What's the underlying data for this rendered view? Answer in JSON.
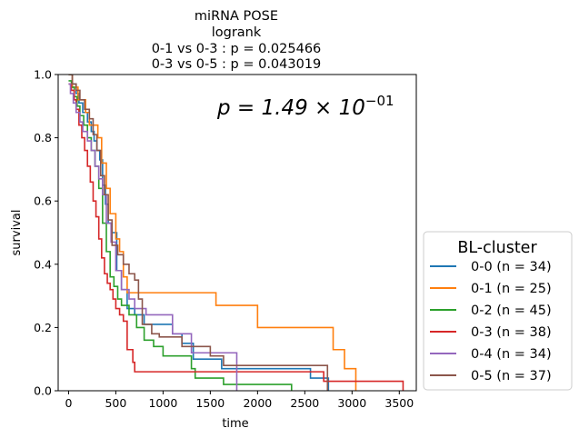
{
  "chart_data": {
    "type": "line",
    "step": true,
    "title_lines": [
      "miRNA POSE",
      "logrank",
      "0-1 vs 0-3 :  p = 0.025466",
      "0-3 vs 0-5 :  p = 0.043019"
    ],
    "annotation": {
      "base": "p = 1.49 × 10",
      "exponent": "−01"
    },
    "xlabel": "time",
    "ylabel": "survival",
    "xlim": [
      -110,
      3680
    ],
    "ylim": [
      0,
      1
    ],
    "xticks": [
      0,
      500,
      1000,
      1500,
      2000,
      2500,
      3000,
      3500
    ],
    "yticks": [
      0.0,
      0.2,
      0.4,
      0.6,
      0.8,
      1.0
    ],
    "grid": false,
    "legend": {
      "title": "BL-cluster",
      "placement": "outside-right-bottom"
    },
    "series": [
      {
        "name": "0-0 (n = 34)",
        "color": "#1f77b4",
        "x": [
          0,
          40,
          80,
          110,
          150,
          200,
          240,
          270,
          300,
          330,
          360,
          390,
          420,
          460,
          510,
          560,
          620,
          700,
          800,
          900,
          1000,
          1100,
          1200,
          1300,
          1320,
          1620,
          2300,
          2560,
          2750
        ],
        "y": [
          1.0,
          0.97,
          0.94,
          0.91,
          0.88,
          0.85,
          0.82,
          0.79,
          0.76,
          0.73,
          0.65,
          0.59,
          0.53,
          0.5,
          0.38,
          0.32,
          0.26,
          0.24,
          0.21,
          0.21,
          0.21,
          0.18,
          0.15,
          0.15,
          0.1,
          0.07,
          0.07,
          0.04,
          0.0
        ]
      },
      {
        "name": "0-1 (n = 25)",
        "color": "#ff7f0e",
        "x": [
          0,
          40,
          100,
          180,
          220,
          310,
          350,
          400,
          440,
          500,
          540,
          580,
          620,
          1560,
          2000,
          2800,
          2920,
          3040
        ],
        "y": [
          1.0,
          0.96,
          0.92,
          0.88,
          0.84,
          0.8,
          0.72,
          0.64,
          0.56,
          0.48,
          0.44,
          0.36,
          0.31,
          0.27,
          0.2,
          0.13,
          0.07,
          0.0
        ]
      },
      {
        "name": "0-2 (n = 45)",
        "color": "#2ca02c",
        "x": [
          0,
          30,
          60,
          90,
          120,
          160,
          200,
          240,
          280,
          320,
          360,
          400,
          440,
          480,
          520,
          560,
          640,
          720,
          800,
          900,
          1000,
          1300,
          1340,
          1400,
          1640,
          2360
        ],
        "y": [
          0.98,
          0.96,
          0.93,
          0.9,
          0.87,
          0.84,
          0.8,
          0.76,
          0.71,
          0.64,
          0.53,
          0.44,
          0.36,
          0.33,
          0.29,
          0.27,
          0.24,
          0.2,
          0.16,
          0.14,
          0.11,
          0.07,
          0.04,
          0.04,
          0.02,
          0.0
        ]
      },
      {
        "name": "0-3 (n = 38)",
        "color": "#d62728",
        "x": [
          0,
          30,
          60,
          80,
          110,
          140,
          170,
          200,
          230,
          260,
          290,
          320,
          350,
          380,
          410,
          440,
          470,
          500,
          540,
          580,
          620,
          680,
          700,
          1000,
          1100,
          1600,
          2700,
          3540
        ],
        "y": [
          0.97,
          0.95,
          0.92,
          0.89,
          0.84,
          0.8,
          0.76,
          0.71,
          0.66,
          0.6,
          0.55,
          0.48,
          0.42,
          0.37,
          0.34,
          0.32,
          0.29,
          0.26,
          0.24,
          0.22,
          0.13,
          0.09,
          0.06,
          0.06,
          0.06,
          0.06,
          0.03,
          0.0
        ]
      },
      {
        "name": "0-4 (n = 34)",
        "color": "#9467bd",
        "x": [
          0,
          20,
          50,
          80,
          120,
          150,
          200,
          240,
          280,
          320,
          360,
          400,
          450,
          500,
          560,
          640,
          700,
          820,
          880,
          1100,
          1300,
          1460,
          1780
        ],
        "y": [
          0.97,
          0.94,
          0.91,
          0.88,
          0.85,
          0.82,
          0.79,
          0.76,
          0.71,
          0.67,
          0.62,
          0.53,
          0.47,
          0.38,
          0.32,
          0.29,
          0.26,
          0.24,
          0.24,
          0.18,
          0.12,
          0.12,
          0.0
        ]
      },
      {
        "name": "0-5 (n = 37)",
        "color": "#8c564b",
        "x": [
          0,
          40,
          80,
          120,
          170,
          220,
          260,
          300,
          340,
          380,
          420,
          460,
          520,
          580,
          640,
          700,
          740,
          780,
          880,
          960,
          1200,
          1500,
          1640,
          2100,
          2740
        ],
        "y": [
          1.0,
          0.97,
          0.95,
          0.92,
          0.89,
          0.86,
          0.81,
          0.76,
          0.68,
          0.62,
          0.54,
          0.46,
          0.43,
          0.4,
          0.37,
          0.35,
          0.29,
          0.21,
          0.18,
          0.17,
          0.14,
          0.11,
          0.08,
          0.08,
          0.0
        ]
      }
    ]
  }
}
